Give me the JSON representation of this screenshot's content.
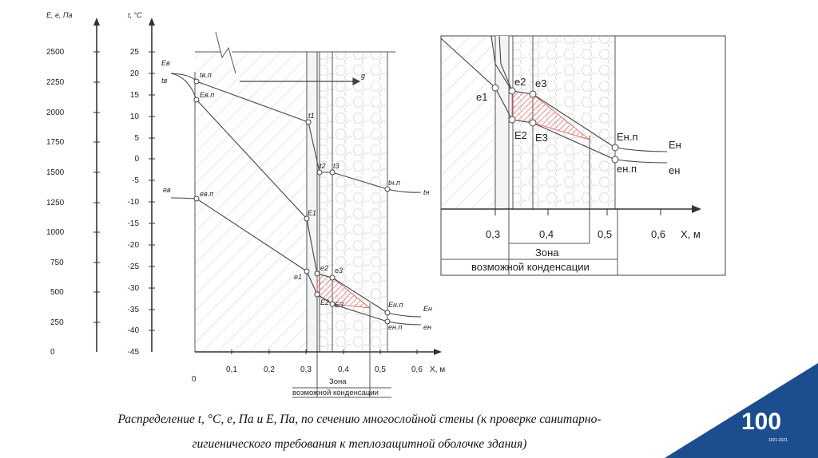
{
  "main": {
    "axis_e_title": "E, e, Па",
    "axis_t_title": "t, °C",
    "e_ticks": [
      "2500",
      "2250",
      "2000",
      "1750",
      "1500",
      "1250",
      "1000",
      "750",
      "500",
      "250",
      "0"
    ],
    "t_ticks": [
      "25",
      "20",
      "15",
      "10",
      "5",
      "0",
      "-5",
      "-10",
      "-15",
      "-20",
      "-25",
      "-30",
      "-35",
      "-40",
      "-45"
    ],
    "x_ticks": [
      "0",
      "0,1",
      "0,2",
      "0,3",
      "0,4",
      "0,5",
      "0,6"
    ],
    "x_axis_label": "X, м",
    "zone_label_1": "Зона",
    "zone_label_2": "возможной конденсации",
    "labels": {
      "E_v": "Eв",
      "t_v": "tв",
      "t_vp": "tв.п",
      "E_vp": "Eв.п",
      "t1": "t1",
      "t2": "t2",
      "t3": "t3",
      "t_np": "tн.п",
      "t_n": "tн",
      "e_v": "eв",
      "e_vp": "eв.п",
      "E1": "E1",
      "e1": "e1",
      "e2": "e2",
      "e3": "e3",
      "E2": "E2",
      "E3": "E3",
      "E_np": "Eн.п",
      "E_n": "Eн",
      "e_np": "eн.п",
      "e_n": "eн",
      "g": "g"
    }
  },
  "inset": {
    "x_ticks": [
      "0,3",
      "0,4",
      "0,5",
      "0,6"
    ],
    "x_axis_label": "X, м",
    "zone_label_1": "Зона",
    "zone_label_2": "возможной конденсации",
    "labels": {
      "e1": "e1",
      "e2": "e2",
      "e3": "e3",
      "E2": "E2",
      "E3": "E3",
      "E_np": "Eн.п",
      "E_n": "Eн",
      "e_np": "eн.п",
      "e_n": "eн"
    }
  },
  "caption": {
    "line1": "Распределение t, °C, e, Па и E, Па, по сечению многослойной стены (к проверке санитарно-",
    "line2": "гигиенического требования к теплозащитной оболочке здания)"
  },
  "logo": {
    "number": "100",
    "years": "1921-2021"
  },
  "colors": {
    "line": "#444444",
    "hatch": "#c8c8c8",
    "condensation_zone": "#d9534f",
    "logo_blue": "#1c4e8f"
  }
}
